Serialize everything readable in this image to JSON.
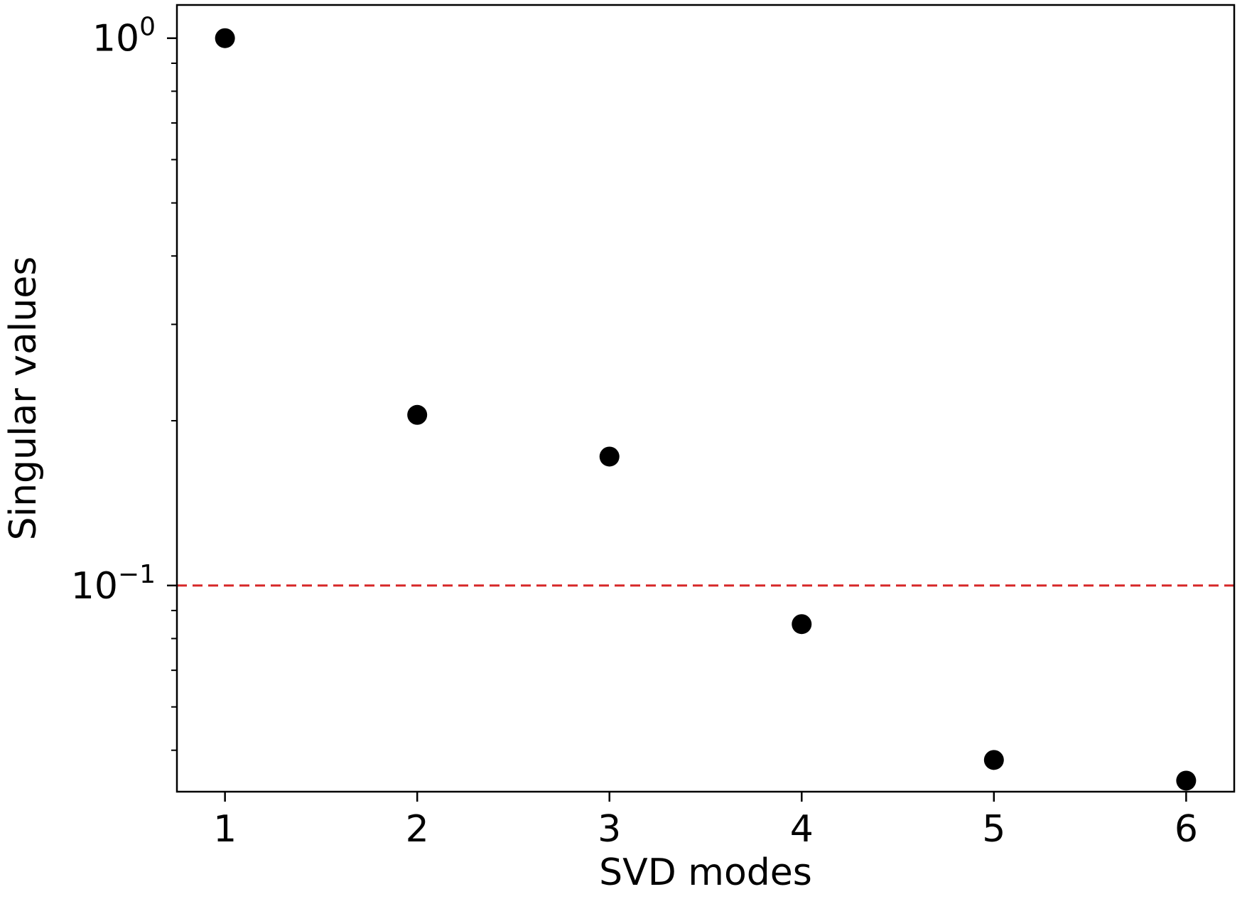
{
  "chart_data": {
    "type": "scatter",
    "title": "",
    "xlabel": "SVD modes",
    "ylabel": "Singular values",
    "yscale": "log",
    "x": [
      1,
      2,
      3,
      4,
      5,
      6
    ],
    "y": [
      1.0,
      0.205,
      0.172,
      0.085,
      0.048,
      0.044
    ],
    "xlim": [
      0.75,
      6.25
    ],
    "ylim": [
      0.042,
      1.15
    ],
    "xticks": [
      1,
      2,
      3,
      4,
      5,
      6
    ],
    "xtick_labels": [
      "1",
      "2",
      "3",
      "4",
      "5",
      "6"
    ],
    "yticks_major": [
      {
        "value": 1.0,
        "base": "10",
        "exp": "0"
      },
      {
        "value": 0.1,
        "base": "10",
        "exp": "−1"
      }
    ],
    "yticks_minor": [
      0.05,
      0.06,
      0.07,
      0.08,
      0.09,
      0.2,
      0.3,
      0.4,
      0.5,
      0.6,
      0.7,
      0.8,
      0.9
    ],
    "threshold_line": {
      "y": 0.1,
      "style": "dashed"
    },
    "marker_color": "#000000",
    "threshold_color": "#d62728",
    "grid": false,
    "legend": "none"
  }
}
